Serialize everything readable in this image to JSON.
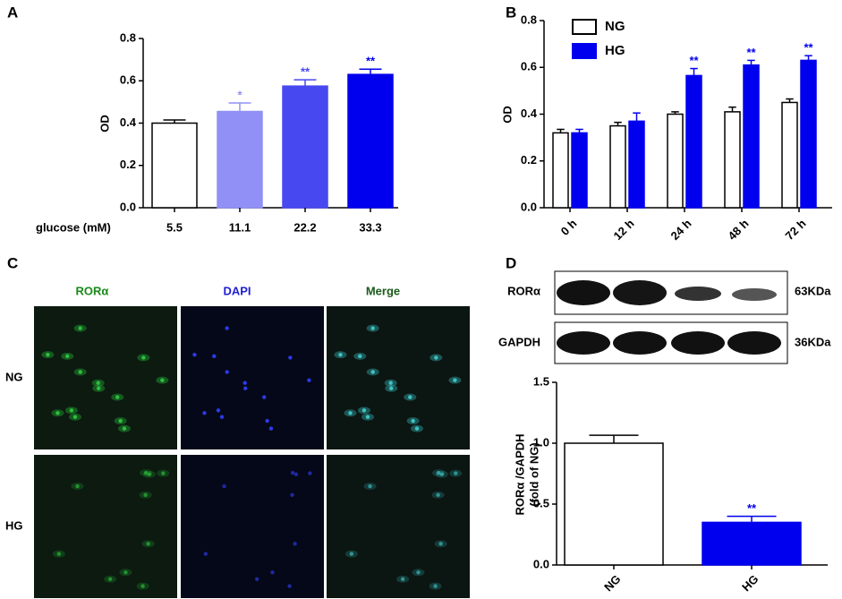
{
  "chart_data": [
    {
      "type": "bar",
      "panel_label": "A",
      "ylabel": "OD",
      "xlabel": "glucose (mM)",
      "categories": [
        "5.5",
        "11.1",
        "22.2",
        "33.3"
      ],
      "values": [
        0.4,
        0.455,
        0.575,
        0.63
      ],
      "errors": [
        0.015,
        0.04,
        0.03,
        0.025
      ],
      "colors": [
        "#ffffff",
        "#9090f6",
        "#4848f0",
        "#0000ee"
      ],
      "annotations": [
        null,
        "*",
        "**",
        "**"
      ],
      "ylim": [
        0,
        0.8
      ],
      "yticks": [
        {
          "value": 0,
          "label": "0.0"
        },
        0.2,
        0.4,
        0.6,
        0.8
      ]
    },
    {
      "type": "grouped-bar",
      "panel_label": "B",
      "ylabel": "OD",
      "legend": "top-left",
      "categories": [
        "0 h",
        "12 h",
        "24 h",
        "48 h",
        "72 h"
      ],
      "series": [
        {
          "name": "NG",
          "color": "#ffffff",
          "values": [
            0.32,
            0.35,
            0.4,
            0.41,
            0.45
          ],
          "errors": [
            0.015,
            0.015,
            0.01,
            0.02,
            0.015
          ]
        },
        {
          "name": "HG",
          "color": "#0000ee",
          "values": [
            0.32,
            0.37,
            0.565,
            0.61,
            0.63
          ],
          "errors": [
            0.015,
            0.035,
            0.03,
            0.02,
            0.02
          ],
          "annotations": [
            null,
            null,
            "**",
            "**",
            "**"
          ]
        }
      ],
      "ylim": [
        0,
        0.8
      ],
      "yticks": [
        {
          "value": 0,
          "label": "0.0"
        },
        0.2,
        0.4,
        0.6,
        0.8
      ]
    },
    {
      "type": "bar",
      "panel_label": "D",
      "ylabel": [
        "RORα /GAPDH",
        "(fold of NG)"
      ],
      "categories": [
        "NG",
        "HG"
      ],
      "values": [
        1.0,
        0.35
      ],
      "errors": [
        0.065,
        0.05
      ],
      "colors": [
        "#ffffff",
        "#0000ee"
      ],
      "annotations": [
        null,
        "**"
      ],
      "ylim": [
        0,
        1.5
      ],
      "yticks": [
        {
          "value": 0,
          "label": "0.0"
        },
        0.5,
        {
          "value": 1,
          "label": "1.0"
        },
        1.5
      ]
    }
  ],
  "panel_c": {
    "label": "C",
    "columns": [
      "RORα",
      "DAPI",
      "Merge"
    ],
    "rows": [
      "NG",
      "HG"
    ]
  },
  "blot": {
    "bands": [
      "RORα",
      "GAPDH"
    ],
    "sizes": [
      "63KDa",
      "36KDa"
    ]
  }
}
